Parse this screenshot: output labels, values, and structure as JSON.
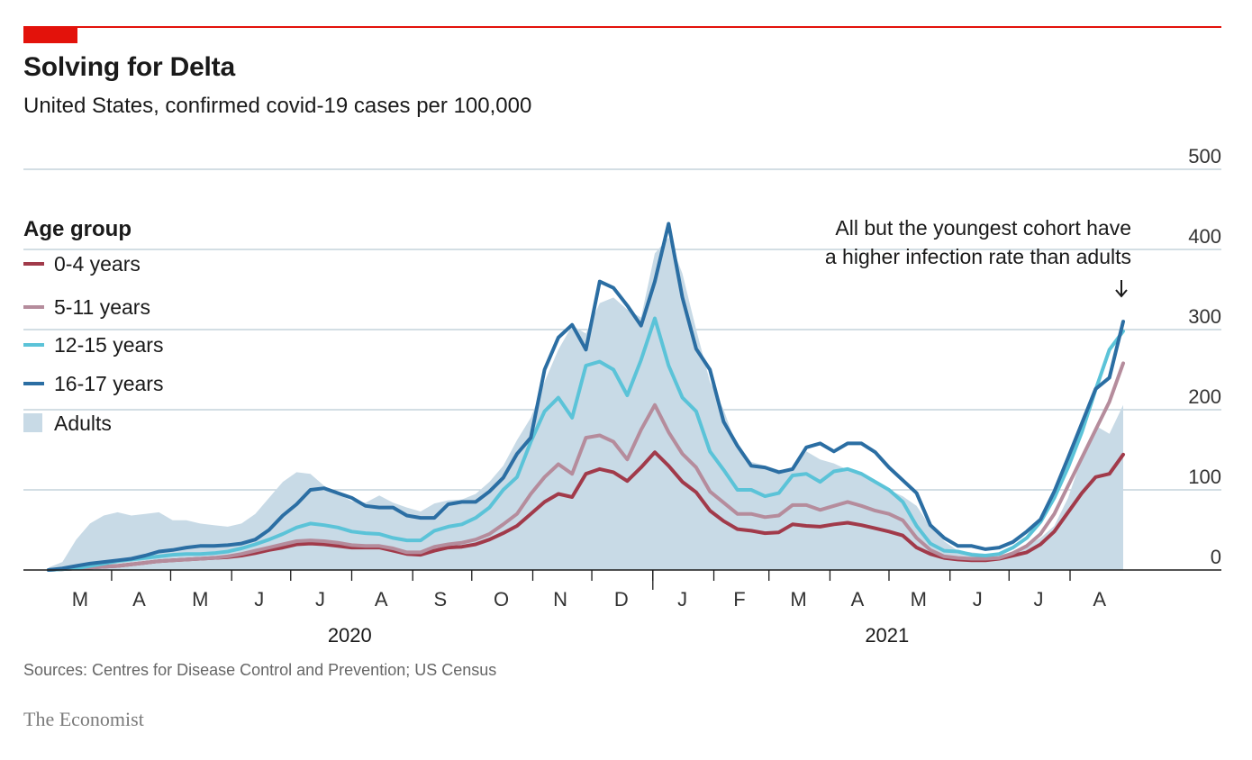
{
  "header": {
    "title": "Solving for Delta",
    "subtitle": "United States, confirmed covid-19 cases per 100,000"
  },
  "footer": {
    "source": "Sources: Centres for Disease Control and Prevention; US Census",
    "brand": "The Economist"
  },
  "colors": {
    "accent": "#e3120b",
    "age_0_4": "#a13a4a",
    "age_5_11": "#b58c9c",
    "age_12_15": "#5bc3d8",
    "age_16_17": "#2b6ea3",
    "adults": "#c8dae6"
  },
  "chart_data": {
    "type": "line",
    "y_range": [
      0,
      500
    ],
    "y_ticks": [
      0,
      100,
      200,
      300,
      400,
      500
    ],
    "grid": true,
    "x_start": "2020-02-29",
    "x_end": "2021-08-28",
    "x_month_labels": [
      {
        "label": "M",
        "date": "2020-03-16"
      },
      {
        "label": "A",
        "date": "2020-04-15"
      },
      {
        "label": "M",
        "date": "2020-05-16"
      },
      {
        "label": "J",
        "date": "2020-06-15"
      },
      {
        "label": "J",
        "date": "2020-07-16"
      },
      {
        "label": "A",
        "date": "2020-08-16"
      },
      {
        "label": "S",
        "date": "2020-09-15"
      },
      {
        "label": "O",
        "date": "2020-10-16"
      },
      {
        "label": "N",
        "date": "2020-11-15"
      },
      {
        "label": "D",
        "date": "2020-12-16"
      },
      {
        "label": "J",
        "date": "2021-01-16"
      },
      {
        "label": "F",
        "date": "2021-02-14"
      },
      {
        "label": "M",
        "date": "2021-03-16"
      },
      {
        "label": "A",
        "date": "2021-04-15"
      },
      {
        "label": "M",
        "date": "2021-05-16"
      },
      {
        "label": "J",
        "date": "2021-06-15"
      },
      {
        "label": "J",
        "date": "2021-07-16"
      },
      {
        "label": "A",
        "date": "2021-08-16"
      }
    ],
    "x_year_labels": [
      {
        "label": "2020",
        "date": "2020-07-31"
      },
      {
        "label": "2021",
        "date": "2021-04-30"
      }
    ],
    "legend": {
      "title": "Age group",
      "position": "top-left",
      "entries": [
        "0-4 years",
        "5-11 years",
        "12-15 years",
        "16-17 years",
        "Adults"
      ]
    },
    "annotation": {
      "lines": [
        "All but the youngest cohort have",
        "a higher infection rate than adults"
      ],
      "target_date": "2021-08-28",
      "target_value": 318
    },
    "x": [
      "2020-02-29",
      "2020-03-07",
      "2020-03-14",
      "2020-03-21",
      "2020-03-28",
      "2020-04-04",
      "2020-04-11",
      "2020-04-18",
      "2020-04-25",
      "2020-05-02",
      "2020-05-09",
      "2020-05-16",
      "2020-05-23",
      "2020-05-30",
      "2020-06-06",
      "2020-06-13",
      "2020-06-20",
      "2020-06-27",
      "2020-07-04",
      "2020-07-11",
      "2020-07-18",
      "2020-07-25",
      "2020-08-01",
      "2020-08-08",
      "2020-08-15",
      "2020-08-22",
      "2020-08-29",
      "2020-09-05",
      "2020-09-12",
      "2020-09-19",
      "2020-09-26",
      "2020-10-03",
      "2020-10-10",
      "2020-10-17",
      "2020-10-24",
      "2020-10-31",
      "2020-11-07",
      "2020-11-14",
      "2020-11-21",
      "2020-11-28",
      "2020-12-05",
      "2020-12-12",
      "2020-12-19",
      "2020-12-26",
      "2021-01-02",
      "2021-01-09",
      "2021-01-16",
      "2021-01-23",
      "2021-01-30",
      "2021-02-06",
      "2021-02-13",
      "2021-02-20",
      "2021-02-27",
      "2021-03-06",
      "2021-03-13",
      "2021-03-20",
      "2021-03-27",
      "2021-04-03",
      "2021-04-10",
      "2021-04-17",
      "2021-04-24",
      "2021-05-01",
      "2021-05-08",
      "2021-05-15",
      "2021-05-22",
      "2021-05-29",
      "2021-06-05",
      "2021-06-12",
      "2021-06-19",
      "2021-06-26",
      "2021-07-03",
      "2021-07-10",
      "2021-07-17",
      "2021-07-24",
      "2021-07-31",
      "2021-08-07",
      "2021-08-14",
      "2021-08-21",
      "2021-08-28"
    ],
    "series": [
      {
        "name": "Adults",
        "style": "area",
        "color": "#c8dae6",
        "values": [
          3,
          10,
          38,
          58,
          68,
          72,
          68,
          70,
          72,
          62,
          62,
          58,
          56,
          54,
          58,
          70,
          90,
          110,
          122,
          120,
          105,
          95,
          86,
          84,
          93,
          84,
          78,
          73,
          83,
          87,
          88,
          95,
          110,
          130,
          162,
          190,
          235,
          275,
          305,
          295,
          333,
          340,
          325,
          315,
          395,
          415,
          370,
          300,
          235,
          200,
          152,
          135,
          130,
          125,
          125,
          148,
          138,
          133,
          125,
          118,
          112,
          100,
          92,
          80,
          54,
          36,
          24,
          22,
          20,
          19,
          22,
          30,
          40,
          55,
          90,
          140,
          180,
          170,
          206
        ]
      },
      {
        "name": "0-4 years",
        "style": "line",
        "color": "#a13a4a",
        "values": [
          0,
          1,
          2,
          3,
          4,
          5,
          7,
          9,
          11,
          12,
          13,
          14,
          15,
          16,
          18,
          21,
          25,
          28,
          32,
          33,
          32,
          30,
          28,
          28,
          28,
          24,
          20,
          19,
          24,
          28,
          29,
          32,
          38,
          46,
          55,
          70,
          85,
          95,
          91,
          120,
          126,
          122,
          111,
          128,
          147,
          130,
          110,
          97,
          74,
          61,
          51,
          49,
          46,
          47,
          57,
          55,
          54,
          57,
          59,
          56,
          52,
          48,
          43,
          28,
          20,
          15,
          13,
          12,
          12,
          14,
          18,
          22,
          32,
          48,
          72,
          96,
          116,
          120,
          144
        ]
      },
      {
        "name": "5-11 years",
        "style": "line",
        "color": "#b58c9c",
        "values": [
          0,
          1,
          2,
          3,
          4,
          5,
          7,
          9,
          11,
          12,
          13,
          14,
          15,
          17,
          20,
          24,
          28,
          32,
          36,
          37,
          36,
          34,
          31,
          30,
          30,
          27,
          22,
          22,
          29,
          32,
          34,
          38,
          45,
          57,
          70,
          95,
          116,
          132,
          120,
          165,
          168,
          160,
          138,
          175,
          206,
          172,
          145,
          128,
          98,
          84,
          70,
          70,
          66,
          68,
          81,
          81,
          75,
          80,
          85,
          80,
          74,
          70,
          62,
          40,
          25,
          17,
          15,
          14,
          14,
          15,
          21,
          30,
          45,
          70,
          105,
          140,
          175,
          210,
          258
        ]
      },
      {
        "name": "12-15 years",
        "style": "line",
        "color": "#5bc3d8",
        "values": [
          0,
          1,
          2,
          5,
          8,
          11,
          13,
          15,
          17,
          19,
          20,
          20,
          21,
          23,
          27,
          32,
          38,
          45,
          53,
          58,
          56,
          53,
          48,
          46,
          45,
          40,
          37,
          37,
          49,
          54,
          57,
          65,
          78,
          100,
          116,
          160,
          198,
          215,
          190,
          255,
          260,
          250,
          218,
          262,
          314,
          255,
          215,
          198,
          148,
          125,
          100,
          100,
          92,
          96,
          118,
          120,
          110,
          123,
          126,
          120,
          110,
          100,
          85,
          55,
          33,
          24,
          23,
          19,
          18,
          20,
          28,
          40,
          60,
          90,
          128,
          172,
          225,
          275,
          298
        ]
      },
      {
        "name": "16-17 years",
        "style": "line",
        "color": "#2b6ea3",
        "values": [
          0,
          2,
          5,
          8,
          10,
          12,
          14,
          18,
          23,
          25,
          28,
          30,
          30,
          31,
          33,
          38,
          50,
          68,
          82,
          100,
          102,
          96,
          90,
          80,
          78,
          78,
          68,
          65,
          65,
          82,
          85,
          85,
          98,
          115,
          145,
          165,
          250,
          290,
          306,
          275,
          360,
          352,
          330,
          305,
          360,
          432,
          340,
          276,
          250,
          185,
          155,
          130,
          128,
          122,
          126,
          153,
          158,
          148,
          158,
          158,
          147,
          128,
          112,
          96,
          56,
          40,
          30,
          30,
          26,
          28,
          35,
          48,
          63,
          98,
          140,
          183,
          226,
          240,
          310
        ]
      }
    ]
  }
}
